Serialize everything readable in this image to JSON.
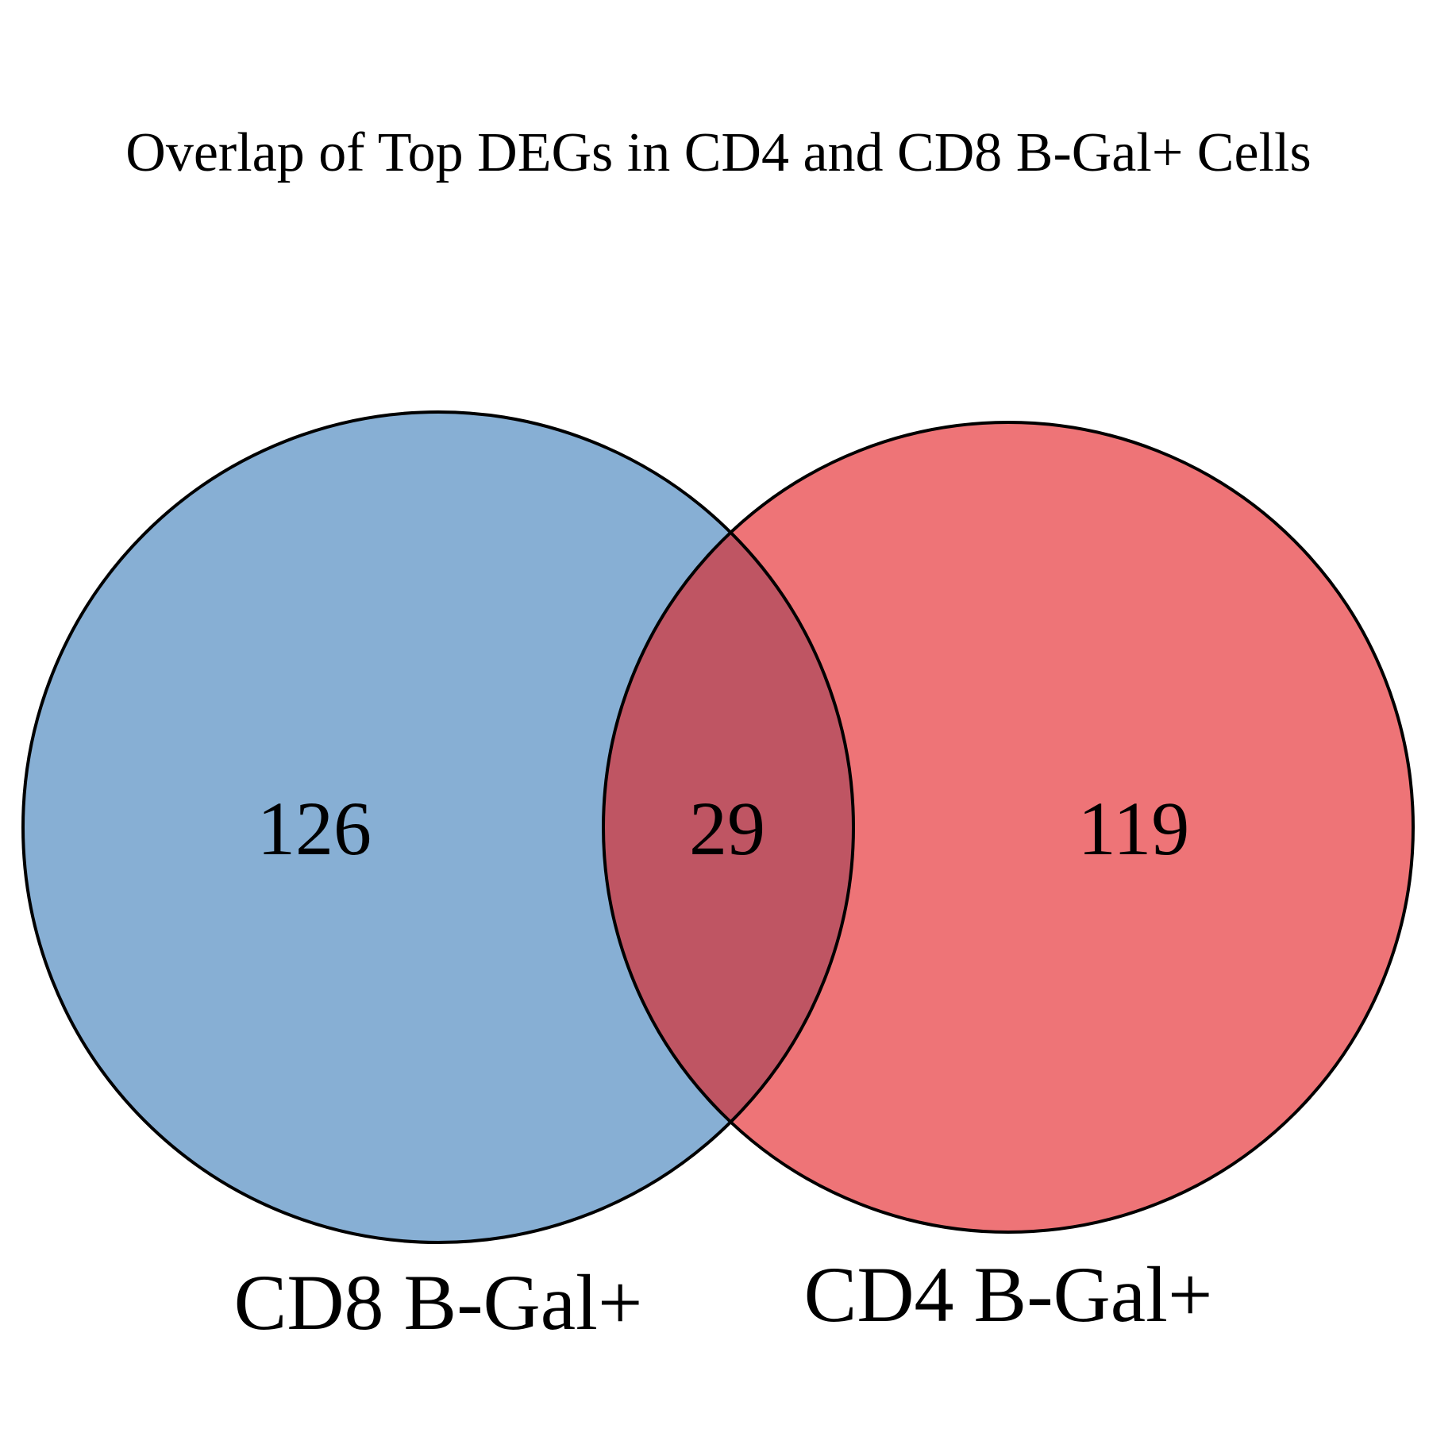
{
  "title": "Overlap of Top DEGs in CD4 and CD8 B-Gal+ Cells",
  "sets": [
    {
      "label": "CD8 B-Gal+",
      "only_count": "126",
      "color": "#87AFD4"
    },
    {
      "label": "CD4 B-Gal+",
      "only_count": "119",
      "color": "#EE7477"
    }
  ],
  "intersection": {
    "count": "29",
    "color": "#BF5563"
  },
  "outline_color": "#000000"
}
